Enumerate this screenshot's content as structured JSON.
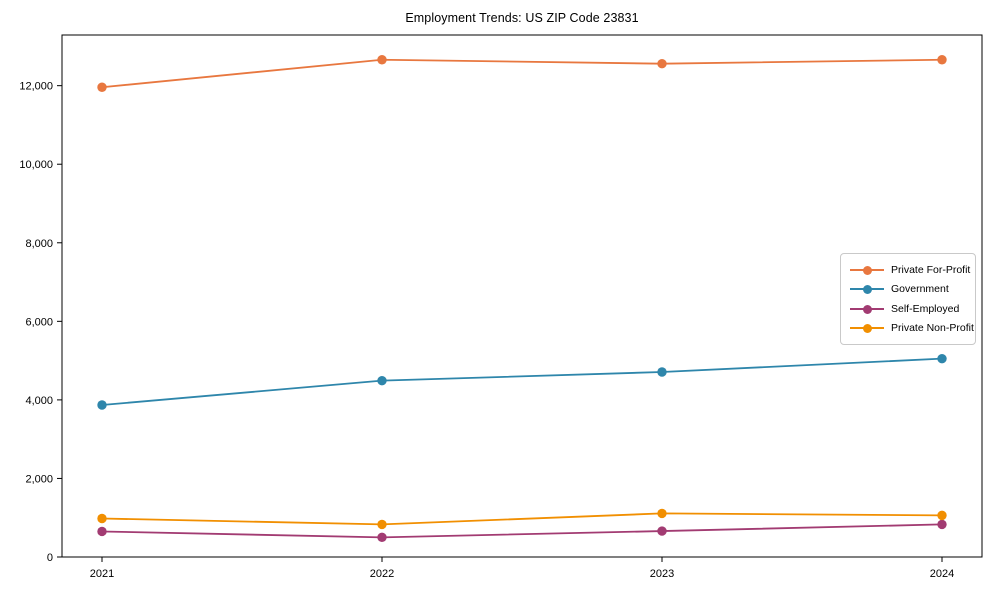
{
  "figure": {
    "title": "Employment Trends: US ZIP Code 23831",
    "background": "#ffffff",
    "axis_color": "#000000"
  },
  "chart_data": {
    "type": "line",
    "title": "Employment Trends: US ZIP Code 23831",
    "xlabel": "",
    "ylabel": "",
    "grid": false,
    "legend_position": "center right",
    "marker": "circle",
    "x": [
      2021,
      2022,
      2023,
      2024
    ],
    "x_tick_labels": [
      "2021",
      "2022",
      "2023",
      "2024"
    ],
    "ylim": [
      0,
      13290
    ],
    "yticks": [
      0,
      2000,
      4000,
      6000,
      8000,
      10000,
      12000
    ],
    "ytick_labels": [
      "0",
      "2,000",
      "4,000",
      "6,000",
      "8,000",
      "10,000",
      "12,000"
    ],
    "series": [
      {
        "name": "Private For-Profit",
        "color": "#E8773F",
        "values": [
          11960,
          12660,
          12560,
          12660
        ]
      },
      {
        "name": "Government",
        "color": "#2E86AB",
        "values": [
          3870,
          4490,
          4710,
          5050
        ]
      },
      {
        "name": "Self-Employed",
        "color": "#A23B72",
        "values": [
          650,
          500,
          660,
          830
        ]
      },
      {
        "name": "Private Non-Profit",
        "color": "#F18F01",
        "values": [
          980,
          830,
          1110,
          1060
        ]
      }
    ]
  }
}
